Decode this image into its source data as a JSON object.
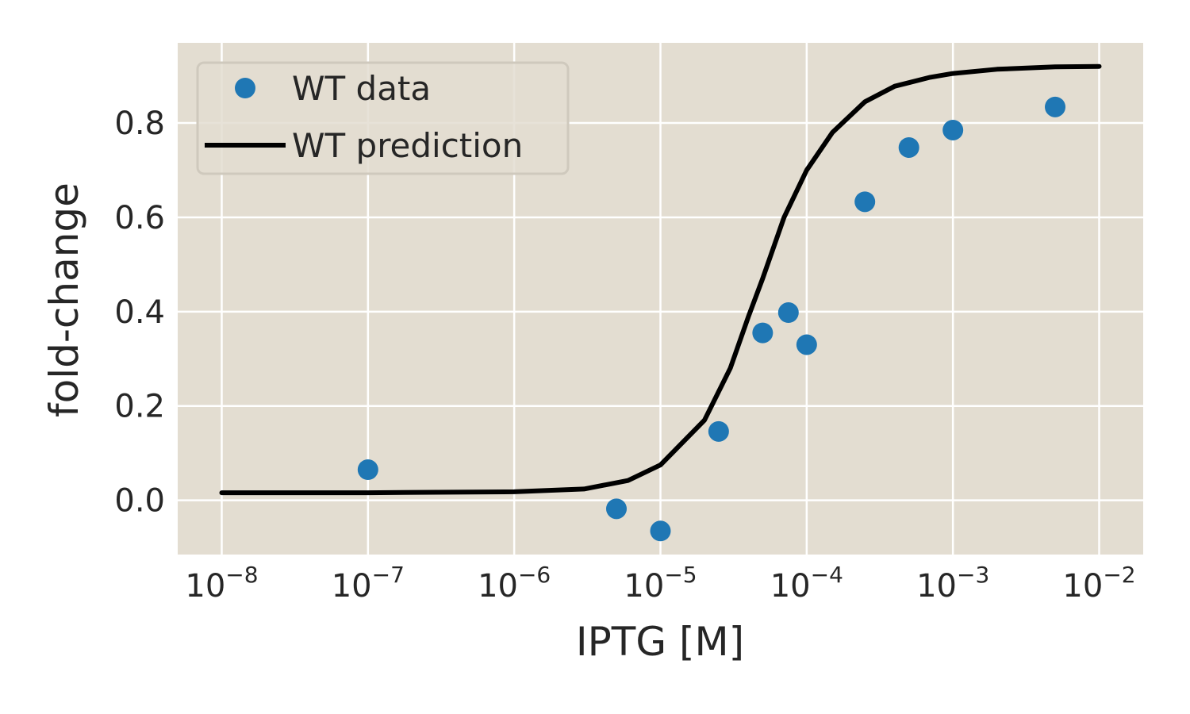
{
  "chart_data": {
    "type": "scatter",
    "xlabel": "IPTG [M]",
    "ylabel": "fold-change",
    "xscale": "log",
    "xlim": [
      5e-09,
      0.02
    ],
    "ylim": [
      -0.115,
      0.97
    ],
    "xticks": [
      {
        "value": 1e-08,
        "base": "10",
        "exp": "−8"
      },
      {
        "value": 1e-07,
        "base": "10",
        "exp": "−7"
      },
      {
        "value": 1e-06,
        "base": "10",
        "exp": "−6"
      },
      {
        "value": 1e-05,
        "base": "10",
        "exp": "−5"
      },
      {
        "value": 0.0001,
        "base": "10",
        "exp": "−4"
      },
      {
        "value": 0.001,
        "base": "10",
        "exp": "−3"
      },
      {
        "value": 0.01,
        "base": "10",
        "exp": "−2"
      }
    ],
    "yticks": [
      {
        "value": 0.0,
        "label": "0.0"
      },
      {
        "value": 0.2,
        "label": "0.2"
      },
      {
        "value": 0.4,
        "label": "0.4"
      },
      {
        "value": 0.6,
        "label": "0.6"
      },
      {
        "value": 0.8,
        "label": "0.8"
      }
    ],
    "grid": true,
    "legend_position": "top-left",
    "background_color": "#e3ddd1",
    "grid_color": "#ffffff",
    "series": [
      {
        "name": "WT data",
        "kind": "scatter",
        "color": "#1f77b4",
        "points": [
          {
            "x": 1e-07,
            "y": 0.065
          },
          {
            "x": 5e-06,
            "y": -0.018
          },
          {
            "x": 1e-05,
            "y": -0.065
          },
          {
            "x": 2.5e-05,
            "y": 0.146
          },
          {
            "x": 5e-05,
            "y": 0.355
          },
          {
            "x": 7.5e-05,
            "y": 0.398
          },
          {
            "x": 0.0001,
            "y": 0.33
          },
          {
            "x": 0.00025,
            "y": 0.633
          },
          {
            "x": 0.0005,
            "y": 0.748
          },
          {
            "x": 0.001,
            "y": 0.785
          },
          {
            "x": 0.005,
            "y": 0.834
          }
        ]
      },
      {
        "name": "WT prediction",
        "kind": "line",
        "color": "#000000",
        "points": [
          {
            "x": 1e-08,
            "y": 0.016
          },
          {
            "x": 1e-07,
            "y": 0.016
          },
          {
            "x": 1e-06,
            "y": 0.018
          },
          {
            "x": 3e-06,
            "y": 0.024
          },
          {
            "x": 6e-06,
            "y": 0.042
          },
          {
            "x": 1e-05,
            "y": 0.075
          },
          {
            "x": 2e-05,
            "y": 0.17
          },
          {
            "x": 3e-05,
            "y": 0.28
          },
          {
            "x": 4e-05,
            "y": 0.39
          },
          {
            "x": 5e-05,
            "y": 0.47
          },
          {
            "x": 7e-05,
            "y": 0.6
          },
          {
            "x": 0.0001,
            "y": 0.7
          },
          {
            "x": 0.00015,
            "y": 0.78
          },
          {
            "x": 0.00025,
            "y": 0.845
          },
          {
            "x": 0.0004,
            "y": 0.878
          },
          {
            "x": 0.0007,
            "y": 0.897
          },
          {
            "x": 0.001,
            "y": 0.905
          },
          {
            "x": 0.002,
            "y": 0.914
          },
          {
            "x": 0.005,
            "y": 0.919
          },
          {
            "x": 0.01,
            "y": 0.92
          }
        ]
      }
    ]
  }
}
